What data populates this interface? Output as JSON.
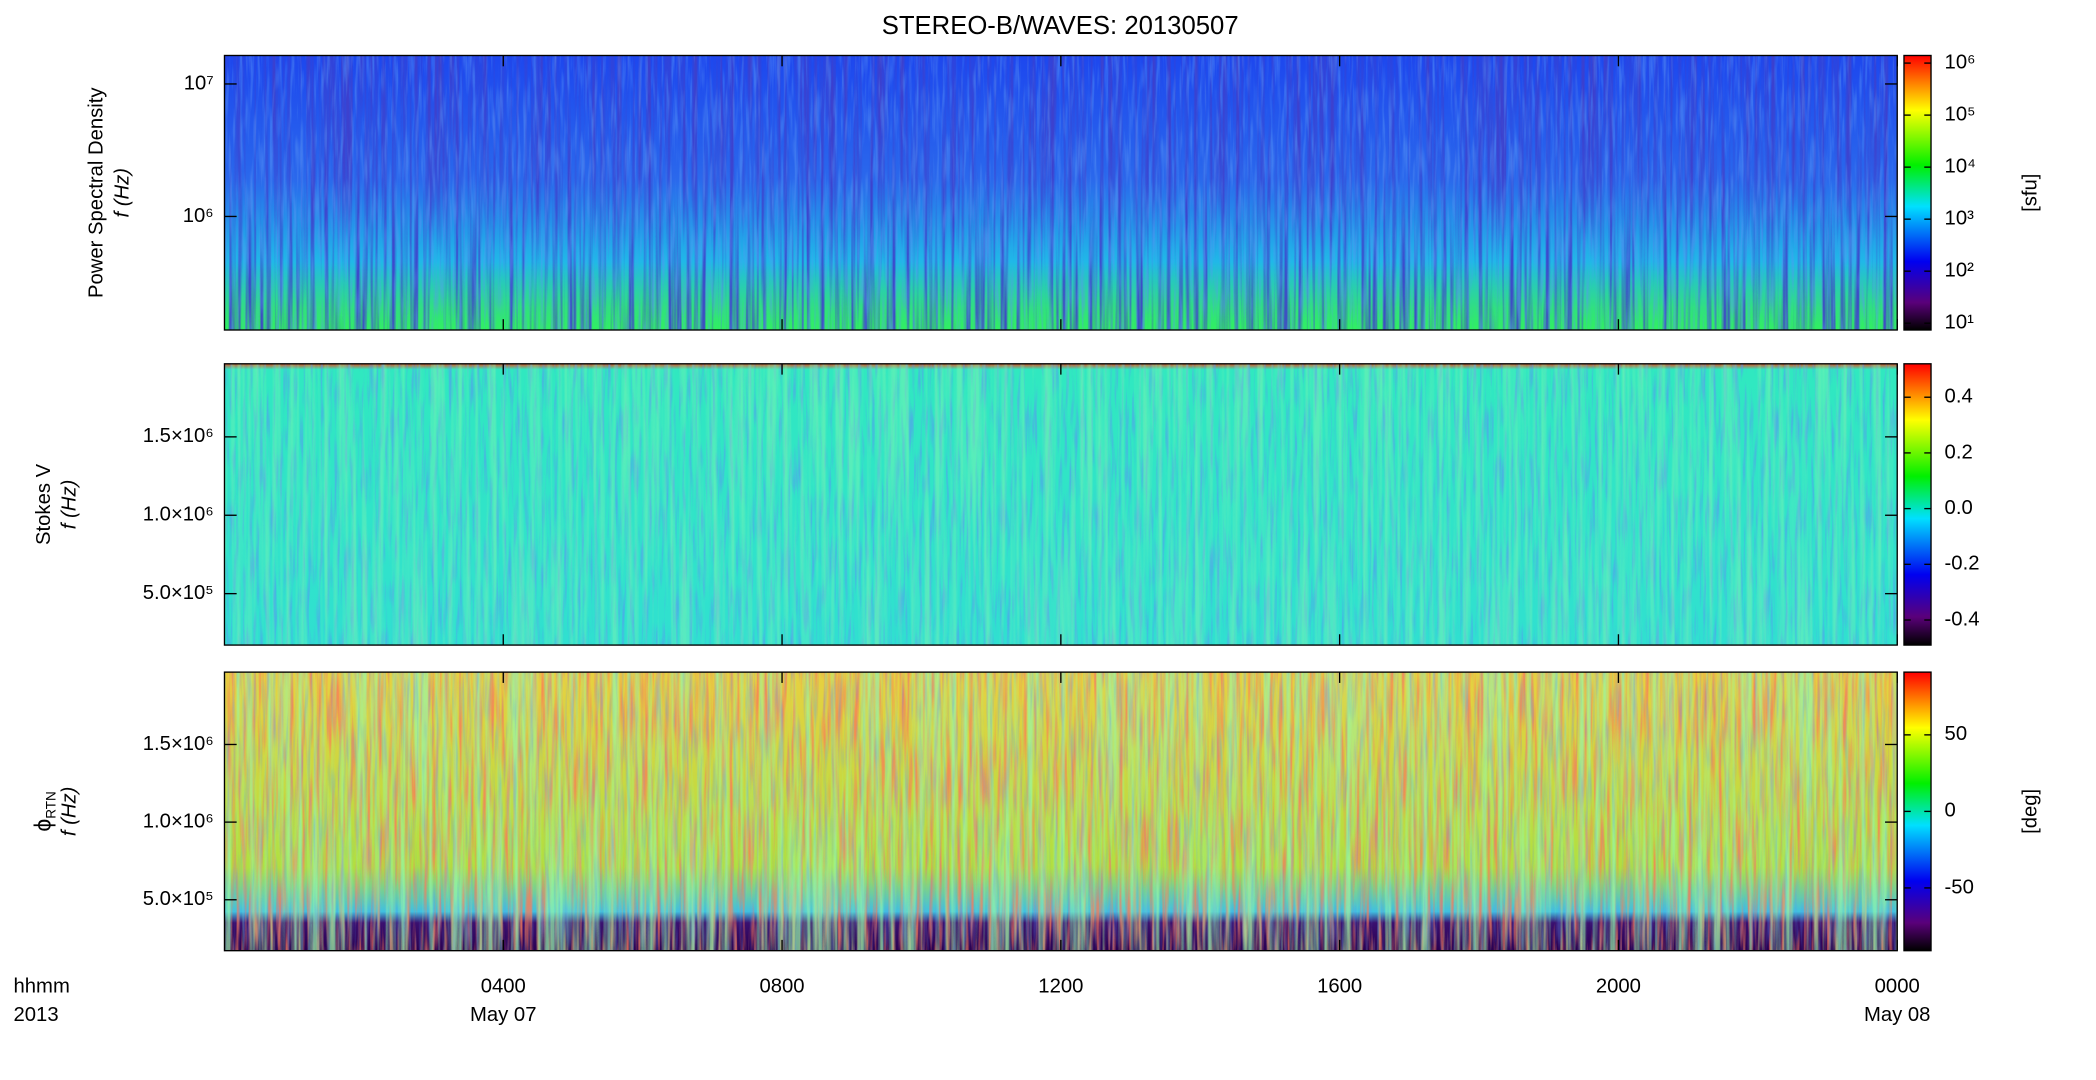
{
  "chart_data": [
    {
      "type": "heatmap",
      "title": "STEREO-B/WAVES: 20130507",
      "ylabel": [
        "Power Spectral Density",
        "f (Hz)"
      ],
      "ylog": true,
      "ylim": [
        139000,
        16400000
      ],
      "yticks": [
        {
          "value": 1000000,
          "label": "10⁶"
        },
        {
          "value": 10000000,
          "label": "10⁷"
        }
      ],
      "colorbar": {
        "log": true,
        "lim": [
          7.4,
          1400000
        ],
        "label": "[sfu]",
        "ticks": [
          {
            "value": 10,
            "label": "10¹"
          },
          {
            "value": 100,
            "label": "10²"
          },
          {
            "value": 1000,
            "label": "10³"
          },
          {
            "value": 10000,
            "label": "10⁴"
          },
          {
            "value": 100000,
            "label": "10⁵"
          },
          {
            "value": 1000000,
            "label": "10⁶"
          }
        ]
      }
    },
    {
      "type": "heatmap",
      "ylabel": [
        "Stokes V",
        "f (Hz)"
      ],
      "ylog": false,
      "ylim": [
        172000,
        1966000
      ],
      "yticks": [
        {
          "value": 500000,
          "label": "5.0×10⁵"
        },
        {
          "value": 1000000,
          "label": "1.0×10⁶"
        },
        {
          "value": 1500000,
          "label": "1.5×10⁶"
        }
      ],
      "colorbar": {
        "log": false,
        "lim": [
          -0.49,
          0.52
        ],
        "ticks": [
          {
            "value": -0.4,
            "label": "-0.4"
          },
          {
            "value": -0.2,
            "label": "-0.2"
          },
          {
            "value": 0,
            "label": "0.0"
          },
          0.2,
          0.4
        ]
      }
    },
    {
      "type": "heatmap",
      "ylabel": [
        "ϕ",
        "RTN",
        "f (Hz)"
      ],
      "ylog": false,
      "ylim": [
        172000,
        1966000
      ],
      "yticks": [
        {
          "value": 500000,
          "label": "5.0×10⁵"
        },
        {
          "value": 1000000,
          "label": "1.0×10⁶"
        },
        {
          "value": 1500000,
          "label": "1.5×10⁶"
        }
      ],
      "colorbar": {
        "log": false,
        "lim": [
          -91,
          91
        ],
        "label": "[deg]",
        "ticks": [
          -50,
          0,
          50
        ]
      },
      "xlabel": [
        "hhmm",
        "2013"
      ],
      "xlim": [
        0,
        24
      ],
      "xticks": [
        {
          "value": 4,
          "label": "0400"
        },
        {
          "value": 8,
          "label": "0800"
        },
        {
          "value": 12,
          "label": "1200"
        },
        {
          "value": 16,
          "label": "1600"
        },
        {
          "value": 20,
          "label": "2000"
        },
        {
          "value": 24,
          "label": "0000"
        }
      ],
      "xdates": [
        {
          "value": 4,
          "label": "May 07"
        },
        {
          "value": 24,
          "label": "May 08"
        }
      ]
    }
  ]
}
